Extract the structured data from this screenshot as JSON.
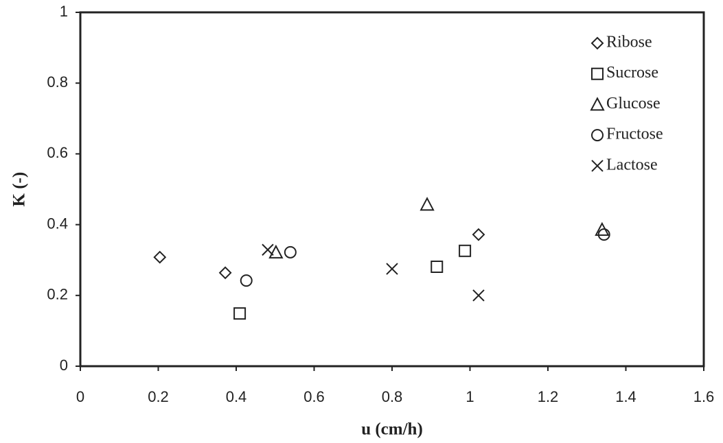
{
  "chart_data": {
    "type": "scatter",
    "x_label": "u (cm/h)",
    "y_label": "K (-)",
    "xlim": [
      0,
      1.6
    ],
    "xticks": [
      0,
      0.2,
      0.4,
      0.6,
      0.8,
      1,
      1.2,
      1.4,
      1.6
    ],
    "ylim": [
      0,
      1
    ],
    "yticks": [
      0,
      0.2,
      0.4,
      0.6,
      0.8,
      1
    ],
    "grid": false,
    "legend": "top-right",
    "series": [
      {
        "name": "Ribose",
        "color": "#222222",
        "marker": "diamond",
        "x": [
          0.204,
          0.372,
          1.022
        ],
        "values": [
          0.308,
          0.264,
          0.372
        ]
      },
      {
        "name": "Sucrose",
        "color": "#222222",
        "marker": "square",
        "x": [
          0.409,
          0.915,
          0.987
        ],
        "values": [
          0.149,
          0.281,
          0.326
        ]
      },
      {
        "name": "Glucose",
        "color": "#222222",
        "marker": "triangle",
        "x": [
          0.502,
          0.89,
          1.339
        ],
        "values": [
          0.322,
          0.457,
          0.386
        ]
      },
      {
        "name": "Fructose",
        "color": "#222222",
        "marker": "circle",
        "x": [
          0.426,
          0.539,
          1.344
        ],
        "values": [
          0.242,
          0.322,
          0.372
        ]
      },
      {
        "name": "Lactose",
        "color": "#222222",
        "marker": "cross",
        "x": [
          0.481,
          0.8,
          1.022
        ],
        "values": [
          0.329,
          0.275,
          0.2
        ]
      }
    ]
  }
}
